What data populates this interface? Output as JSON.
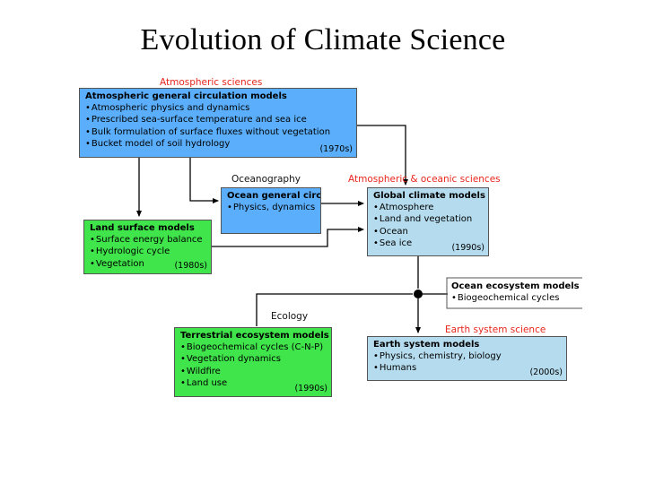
{
  "title": "Evolution of Climate Science",
  "labels": {
    "atmospheric_sciences": "Atmospheric sciences",
    "oceanography": "Oceanography",
    "atm_ocean_sciences": "Atmospheric & oceanic sciences",
    "ecology": "Ecology",
    "earth_system_science": "Earth system science"
  },
  "boxes": {
    "agcm": {
      "heading": "Atmospheric general circulation models",
      "items": [
        "Atmospheric physics and dynamics",
        "Prescribed sea-surface temperature and sea ice",
        "Bulk formulation of surface fluxes without vegetation",
        "Bucket model of soil hydrology"
      ],
      "era": "(1970s)"
    },
    "ocean_gcm": {
      "heading": "Ocean general circulation models",
      "items": [
        "Physics, dynamics"
      ]
    },
    "global_climate": {
      "heading": "Global climate models",
      "items": [
        "Atmosphere",
        "Land and vegetation",
        "Ocean",
        "Sea ice"
      ],
      "era": "(1990s)"
    },
    "land_surface": {
      "heading": "Land surface models",
      "items": [
        "Surface energy balance",
        "Hydrologic cycle",
        "Vegetation"
      ],
      "era": "(1980s)"
    },
    "ocean_ecosystem": {
      "heading": "Ocean ecosystem models",
      "items": [
        "Biogeochemical cycles"
      ]
    },
    "terrestrial": {
      "heading": "Terrestrial ecosystem models",
      "items": [
        "Biogeochemical cycles (C-N-P)",
        "Vegetation dynamics",
        "Wildfire",
        "Land use"
      ],
      "era": "(1990s)"
    },
    "earth_system": {
      "heading": "Earth system models",
      "items": [
        "Physics, chemistry, biology",
        "Humans"
      ],
      "era": "(2000s)"
    }
  },
  "colors": {
    "atmospheric_blue": "#5aaefb",
    "land_green": "#3fe54a",
    "earth_system_lightblue": "#b5dcee",
    "label_red": "#e8261c"
  }
}
